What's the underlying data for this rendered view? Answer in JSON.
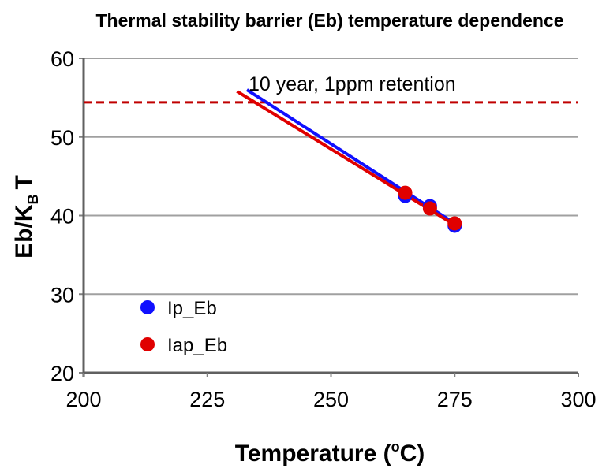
{
  "chart_data": {
    "type": "scatter",
    "title": "Thermal stability barrier (Eb) temperature dependence",
    "xlabel": "Temperature (",
    "xlabel_sup": "o",
    "xlabel_end": "C)",
    "ylabel": "Eb/K",
    "ylabel_sub": "B",
    "ylabel_end": "T",
    "xlim": [
      200,
      300
    ],
    "ylim": [
      20,
      60
    ],
    "xticks": [
      "200",
      "225",
      "250",
      "275",
      "300"
    ],
    "yticks": [
      "20",
      "30",
      "40",
      "50",
      "60"
    ],
    "grid": "horizontal",
    "legend_placement": "left",
    "series": [
      {
        "name": "Ip_Eb",
        "color": "#1010ff",
        "x": [
          265,
          270,
          275
        ],
        "y": [
          42.5,
          41.2,
          38.7
        ],
        "fit": {
          "x": [
            233,
            275
          ],
          "y": [
            56.0,
            39.0
          ]
        }
      },
      {
        "name": "Iap_Eb",
        "color": "#e00000",
        "x": [
          265,
          270,
          275
        ],
        "y": [
          42.9,
          40.9,
          39.0
        ],
        "fit": {
          "x": [
            231,
            275
          ],
          "y": [
            55.8,
            38.8
          ]
        }
      }
    ],
    "reference_line": {
      "label": "10 year, 1ppm retention",
      "y": 54.4,
      "color": "#c00000",
      "style": "dashed"
    }
  }
}
